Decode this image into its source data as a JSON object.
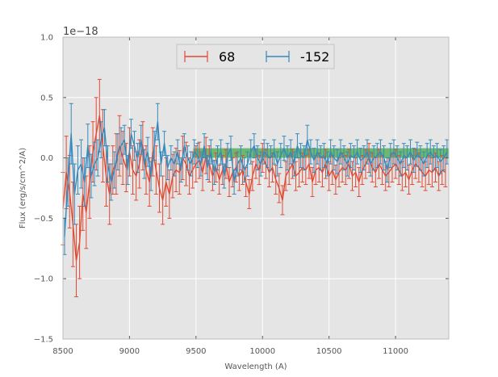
{
  "chart_data": {
    "type": "line",
    "xlabel": "Wavelength (A)",
    "ylabel": "Flux (erg/s/cm^2/A)",
    "offset_text": "1e−18",
    "xlim": [
      8500,
      11400
    ],
    "ylim": [
      -1.5,
      1.0
    ],
    "y_scale_factor": 1e-18,
    "grid": true,
    "legend_position": "top-center",
    "x_ticks": [
      8500,
      9000,
      9500,
      10000,
      10500,
      11000
    ],
    "x_tick_labels": [
      "8500",
      "9000",
      "9500",
      "10000",
      "10500",
      "11000"
    ],
    "y_ticks": [
      -1.5,
      -1.0,
      -0.5,
      0.0,
      0.5,
      1.0
    ],
    "y_tick_labels": [
      "−1.5",
      "−1.0",
      "−0.5",
      "0.0",
      "0.5",
      "1.0"
    ],
    "band": {
      "x_start": 9480,
      "x_end": 11400,
      "y_low": 0.0,
      "y_high": 0.08,
      "color": "#2ca02c"
    },
    "series": [
      {
        "name": "68",
        "color": "#e24a33",
        "x": [
          8500,
          8525,
          8550,
          8575,
          8600,
          8625,
          8650,
          8675,
          8700,
          8725,
          8750,
          8775,
          8800,
          8825,
          8850,
          8875,
          8900,
          8925,
          8950,
          8975,
          9000,
          9025,
          9050,
          9075,
          9100,
          9125,
          9150,
          9175,
          9200,
          9225,
          9250,
          9275,
          9300,
          9325,
          9350,
          9375,
          9400,
          9425,
          9450,
          9475,
          9500,
          9525,
          9550,
          9575,
          9600,
          9625,
          9650,
          9675,
          9700,
          9725,
          9750,
          9775,
          9800,
          9825,
          9850,
          9875,
          9900,
          9925,
          9950,
          9975,
          10000,
          10025,
          10050,
          10075,
          10100,
          10125,
          10150,
          10175,
          10200,
          10225,
          10250,
          10275,
          10300,
          10325,
          10350,
          10375,
          10400,
          10425,
          10450,
          10475,
          10500,
          10525,
          10550,
          10575,
          10600,
          10625,
          10650,
          10675,
          10700,
          10725,
          10750,
          10775,
          10800,
          10825,
          10850,
          10875,
          10900,
          10925,
          10950,
          10975,
          11000,
          11025,
          11050,
          11075,
          11100,
          11125,
          11150,
          11175,
          11200,
          11225,
          11250,
          11275,
          11300,
          11325,
          11350,
          11375
        ],
        "y": [
          -0.42,
          -0.12,
          -0.28,
          -0.55,
          -0.85,
          -0.7,
          -0.3,
          -0.45,
          -0.2,
          0.05,
          0.2,
          0.35,
          0.1,
          -0.15,
          -0.3,
          -0.1,
          -0.05,
          0.1,
          0.0,
          -0.08,
          0.05,
          -0.1,
          -0.15,
          -0.05,
          0.1,
          -0.1,
          -0.2,
          0.05,
          -0.1,
          -0.25,
          -0.35,
          -0.2,
          -0.3,
          -0.15,
          -0.1,
          -0.12,
          0.0,
          -0.05,
          -0.15,
          -0.1,
          -0.05,
          -0.02,
          -0.12,
          0.02,
          -0.05,
          -0.15,
          -0.08,
          -0.18,
          -0.1,
          -0.05,
          -0.2,
          -0.12,
          -0.08,
          -0.15,
          -0.1,
          -0.2,
          -0.3,
          -0.15,
          -0.05,
          -0.1,
          0.0,
          -0.05,
          -0.12,
          -0.08,
          -0.18,
          -0.25,
          -0.35,
          -0.15,
          -0.1,
          -0.05,
          -0.15,
          -0.12,
          -0.08,
          -0.1,
          -0.05,
          -0.2,
          -0.1,
          -0.08,
          -0.12,
          -0.05,
          -0.15,
          -0.1,
          -0.18,
          -0.12,
          -0.08,
          -0.1,
          -0.05,
          -0.15,
          -0.12,
          -0.2,
          -0.1,
          -0.05,
          0.0,
          -0.08,
          -0.12,
          -0.05,
          -0.1,
          -0.15,
          -0.12,
          -0.08,
          -0.05,
          -0.1,
          -0.15,
          -0.12,
          -0.18,
          -0.1,
          -0.05,
          -0.08,
          -0.12,
          -0.15,
          -0.1,
          -0.12,
          -0.08,
          -0.15,
          -0.1,
          -0.12
        ],
        "err": [
          0.3,
          0.3,
          0.3,
          0.35,
          0.3,
          0.3,
          0.3,
          0.3,
          0.3,
          0.25,
          0.3,
          0.3,
          0.3,
          0.25,
          0.25,
          0.2,
          0.25,
          0.25,
          0.22,
          0.2,
          0.2,
          0.2,
          0.2,
          0.2,
          0.2,
          0.2,
          0.2,
          0.2,
          0.2,
          0.2,
          0.2,
          0.2,
          0.2,
          0.18,
          0.18,
          0.18,
          0.18,
          0.18,
          0.15,
          0.15,
          0.15,
          0.15,
          0.15,
          0.15,
          0.15,
          0.12,
          0.12,
          0.12,
          0.12,
          0.12,
          0.12,
          0.12,
          0.12,
          0.12,
          0.12,
          0.12,
          0.12,
          0.12,
          0.12,
          0.12,
          0.12,
          0.12,
          0.12,
          0.12,
          0.12,
          0.12,
          0.12,
          0.12,
          0.12,
          0.12,
          0.12,
          0.12,
          0.12,
          0.12,
          0.12,
          0.12,
          0.12,
          0.12,
          0.12,
          0.12,
          0.12,
          0.12,
          0.12,
          0.12,
          0.12,
          0.12,
          0.12,
          0.12,
          0.12,
          0.12,
          0.12,
          0.12,
          0.12,
          0.12,
          0.12,
          0.12,
          0.12,
          0.12,
          0.12,
          0.12,
          0.12,
          0.12,
          0.12,
          0.12,
          0.12,
          0.12,
          0.12,
          0.12,
          0.12,
          0.12,
          0.12,
          0.12,
          0.12,
          0.12,
          0.12,
          0.12
        ]
      },
      {
        "name": "-152",
        "color": "#348abd",
        "x": [
          8512,
          8537,
          8562,
          8587,
          8612,
          8637,
          8662,
          8687,
          8712,
          8737,
          8762,
          8787,
          8812,
          8837,
          8862,
          8887,
          8912,
          8937,
          8962,
          8987,
          9012,
          9037,
          9062,
          9087,
          9112,
          9137,
          9162,
          9187,
          9212,
          9237,
          9262,
          9287,
          9312,
          9337,
          9362,
          9387,
          9412,
          9437,
          9462,
          9487,
          9512,
          9537,
          9562,
          9587,
          9612,
          9637,
          9662,
          9687,
          9712,
          9737,
          9762,
          9787,
          9812,
          9837,
          9862,
          9887,
          9912,
          9937,
          9962,
          9987,
          10012,
          10037,
          10062,
          10087,
          10112,
          10137,
          10162,
          10187,
          10212,
          10237,
          10262,
          10287,
          10312,
          10337,
          10362,
          10387,
          10412,
          10437,
          10462,
          10487,
          10512,
          10537,
          10562,
          10587,
          10612,
          10637,
          10662,
          10687,
          10712,
          10737,
          10762,
          10787,
          10812,
          10837,
          10862,
          10887,
          10912,
          10937,
          10962,
          10987,
          11012,
          11037,
          11062,
          11087,
          11112,
          11137,
          11162,
          11187,
          11212,
          11237,
          11262,
          11287,
          11312,
          11337,
          11362,
          11387
        ],
        "y": [
          -0.65,
          -0.2,
          0.2,
          -0.3,
          -0.1,
          -0.05,
          -0.2,
          0.1,
          -0.15,
          -0.05,
          0.0,
          0.15,
          0.25,
          -0.05,
          -0.2,
          -0.1,
          0.05,
          0.1,
          0.15,
          -0.1,
          0.2,
          0.1,
          0.0,
          0.15,
          -0.05,
          0.05,
          -0.15,
          0.1,
          0.3,
          -0.05,
          0.12,
          -0.08,
          0.0,
          -0.05,
          0.05,
          -0.1,
          0.1,
          0.0,
          -0.05,
          0.05,
          0.02,
          -0.05,
          0.1,
          -0.08,
          0.05,
          -0.12,
          0.0,
          0.05,
          -0.15,
          0.02,
          0.08,
          -0.2,
          -0.05,
          0.0,
          -0.1,
          -0.05,
          0.05,
          0.1,
          0.0,
          -0.05,
          0.05,
          0.02,
          0.0,
          0.05,
          -0.05,
          0.02,
          0.08,
          0.0,
          0.05,
          -0.05,
          0.1,
          0.02,
          0.0,
          0.15,
          0.05,
          -0.02,
          0.05,
          0.0,
          0.02,
          -0.05,
          0.05,
          0.0,
          -0.03,
          0.05,
          0.0,
          -0.05,
          0.02,
          0.0,
          0.05,
          -0.02,
          0.0,
          0.05,
          -0.05,
          0.0,
          0.02,
          0.05,
          0.0,
          -0.1,
          0.02,
          0.05,
          0.0,
          -0.05,
          0.02,
          0.0,
          0.05,
          -0.02,
          0.03,
          0.0,
          -0.05,
          0.02,
          0.05,
          0.0,
          0.02,
          -0.03,
          0.0,
          0.05
        ],
        "err": [
          0.15,
          0.2,
          0.25,
          0.25,
          0.2,
          0.2,
          0.2,
          0.18,
          0.18,
          0.18,
          0.15,
          0.15,
          0.15,
          0.15,
          0.15,
          0.15,
          0.15,
          0.15,
          0.12,
          0.12,
          0.12,
          0.12,
          0.12,
          0.12,
          0.12,
          0.12,
          0.12,
          0.12,
          0.15,
          0.1,
          0.1,
          0.1,
          0.1,
          0.1,
          0.1,
          0.1,
          0.1,
          0.1,
          0.1,
          0.1,
          0.1,
          0.1,
          0.1,
          0.1,
          0.1,
          0.1,
          0.1,
          0.1,
          0.1,
          0.1,
          0.1,
          0.1,
          0.1,
          0.1,
          0.1,
          0.1,
          0.1,
          0.1,
          0.1,
          0.1,
          0.1,
          0.1,
          0.1,
          0.1,
          0.1,
          0.1,
          0.1,
          0.1,
          0.1,
          0.1,
          0.1,
          0.1,
          0.1,
          0.12,
          0.1,
          0.1,
          0.1,
          0.1,
          0.1,
          0.1,
          0.1,
          0.1,
          0.1,
          0.1,
          0.1,
          0.1,
          0.1,
          0.1,
          0.1,
          0.1,
          0.1,
          0.1,
          0.1,
          0.1,
          0.1,
          0.1,
          0.1,
          0.1,
          0.1,
          0.1,
          0.1,
          0.1,
          0.1,
          0.1,
          0.1,
          0.1,
          0.1,
          0.1,
          0.1,
          0.1,
          0.1,
          0.1,
          0.1,
          0.1,
          0.1,
          0.1
        ]
      }
    ]
  }
}
